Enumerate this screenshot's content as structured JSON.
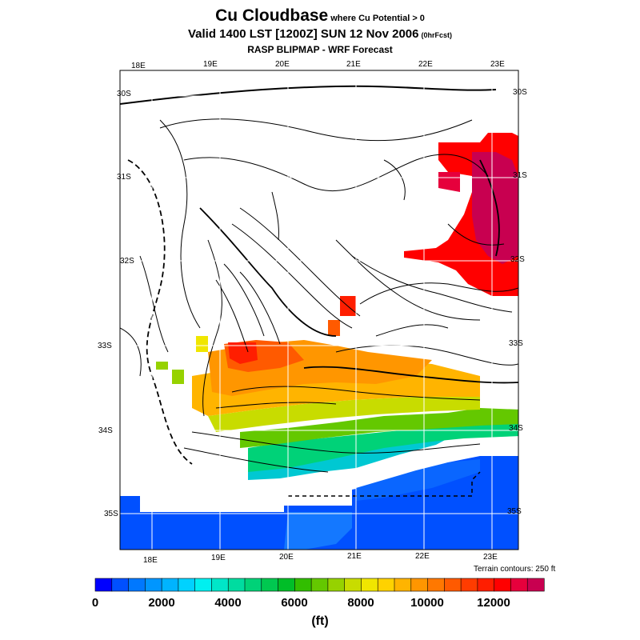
{
  "title": {
    "main": "Cu Cloudbase",
    "qualifier": "where Cu Potential > 0",
    "valid": "Valid 1400 LST [1200Z] SUN 12 Nov 2006",
    "forecast_tag": "(0hrFcst)",
    "subtitle": "RASP BLIPMAP - WRF Forecast"
  },
  "grid": {
    "top_labels": [
      "18E",
      "19E",
      "20E",
      "21E",
      "22E",
      "23E"
    ],
    "bottom_labels": [
      "18E",
      "19E",
      "20E",
      "21E",
      "22E",
      "23E"
    ],
    "left_labels": [
      "30S",
      "31S",
      "32S",
      "33S",
      "34S",
      "35S"
    ],
    "right_labels": [
      "30S",
      "31S",
      "32S",
      "33S",
      "34S",
      "35S"
    ]
  },
  "terrain_note": "Terrain contours: 250 ft",
  "colorbar": {
    "unit": "(ft)",
    "tick_labels": [
      "0",
      "2000",
      "4000",
      "6000",
      "8000",
      "10000",
      "12000"
    ],
    "colors": [
      "#0000ff",
      "#0050ff",
      "#0078ff",
      "#0096ff",
      "#00b4ff",
      "#00d2ff",
      "#00f0f0",
      "#00e6c8",
      "#00dca0",
      "#00d278",
      "#00c850",
      "#00be28",
      "#32be00",
      "#64c800",
      "#96d200",
      "#c8dc00",
      "#f0e600",
      "#ffd200",
      "#ffb400",
      "#ff9600",
      "#ff7800",
      "#ff5a00",
      "#ff3c00",
      "#ff1e00",
      "#ff0000",
      "#e6003c",
      "#c80050"
    ]
  }
}
